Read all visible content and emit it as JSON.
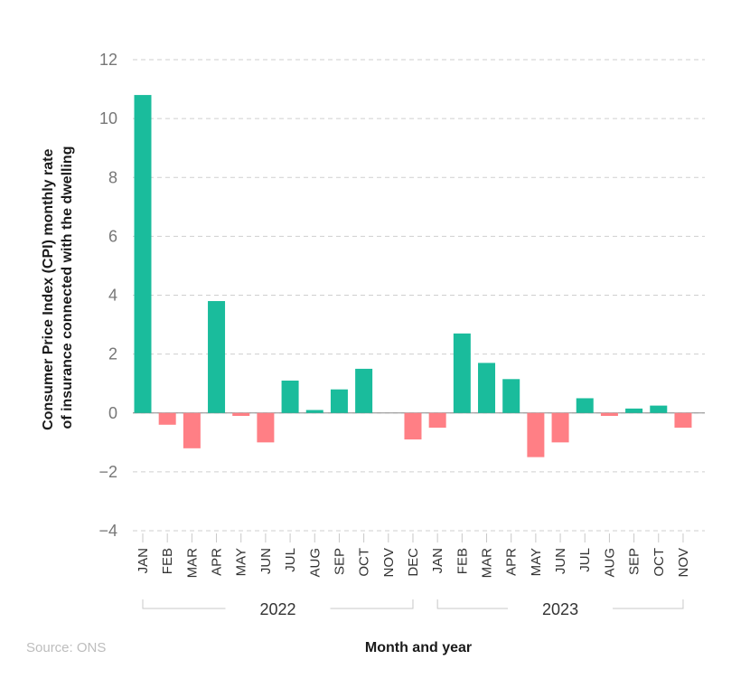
{
  "chart_data": {
    "type": "bar",
    "ylabel": "Consumer Price Index (CPI) monthly rate of insurance connected with the dwelling",
    "ylabel_lines": [
      "Consumer Price Index (CPI) monthly rate",
      "of insurance connected with the dwelling"
    ],
    "xlabel": "Month and year",
    "ylim": [
      -4,
      12
    ],
    "yticks": [
      12,
      10,
      8,
      6,
      4,
      2,
      0,
      -2,
      -4
    ],
    "ytick_labels": [
      "12",
      "10",
      "8",
      "6",
      "4",
      "2",
      "0",
      "−2",
      "−4"
    ],
    "grid": true,
    "categories": [
      "JAN",
      "FEB",
      "MAR",
      "APR",
      "MAY",
      "JUN",
      "JUL",
      "AUG",
      "SEP",
      "OCT",
      "NOV",
      "DEC",
      "JAN",
      "FEB",
      "MAR",
      "APR",
      "MAY",
      "JUN",
      "JUL",
      "AUG",
      "SEP",
      "OCT",
      "NOV"
    ],
    "values": [
      10.8,
      -0.4,
      -1.2,
      3.8,
      -0.1,
      -1.0,
      1.1,
      0.1,
      0.8,
      1.5,
      0.0,
      -0.9,
      -0.5,
      2.7,
      1.7,
      1.15,
      -1.5,
      -1.0,
      0.5,
      -0.1,
      0.15,
      0.25,
      -0.5
    ],
    "groups": [
      {
        "label": "2022",
        "start": 0,
        "end": 11
      },
      {
        "label": "2023",
        "start": 12,
        "end": 22
      }
    ],
    "colors": {
      "positive": "#1abc9c",
      "negative": "#ff7f85"
    }
  },
  "source_text": "Source: ONS"
}
